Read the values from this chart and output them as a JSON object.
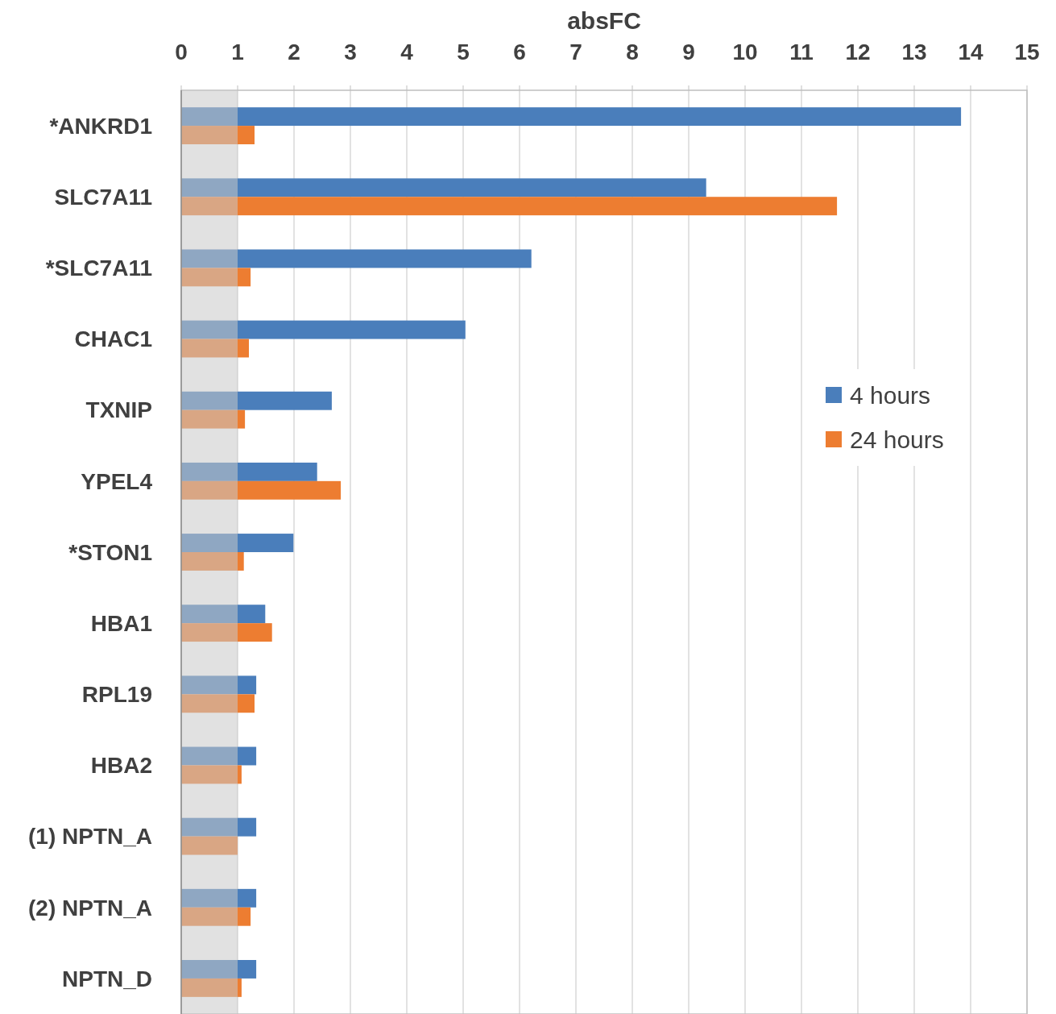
{
  "chart_data": {
    "type": "bar",
    "orientation": "horizontal",
    "xlabel": "absFC",
    "categories": [
      "*ANKRD1",
      "SLC7A11",
      "*SLC7A11",
      "CHAC1",
      "TXNIP",
      "YPEL4",
      "*STON1",
      "HBA1",
      "RPL19",
      "HBA2",
      "(1) NPTN_A",
      "(2) NPTN_A",
      "NPTN_D"
    ],
    "series": [
      {
        "name": "4 hours",
        "color": "#4a7ebb",
        "values": [
          13.83,
          9.31,
          6.21,
          5.04,
          2.67,
          2.41,
          1.99,
          1.49,
          1.33,
          1.33,
          1.33,
          1.33,
          1.33
        ]
      },
      {
        "name": "24 hours",
        "color": "#ed7d31",
        "values": [
          1.3,
          11.63,
          1.23,
          1.2,
          1.13,
          2.83,
          1.11,
          1.61,
          1.3,
          1.07,
          1.0,
          1.23,
          1.07
        ]
      }
    ],
    "xlim": [
      0,
      15
    ],
    "xticks": [
      0,
      1,
      2,
      3,
      4,
      5,
      6,
      7,
      8,
      9,
      10,
      11,
      12,
      13,
      14,
      15
    ],
    "grid": "x",
    "legend": "right",
    "bands": [
      {
        "axis": "x",
        "from": 0,
        "to": 1,
        "color": "#c8c8c8"
      }
    ]
  }
}
